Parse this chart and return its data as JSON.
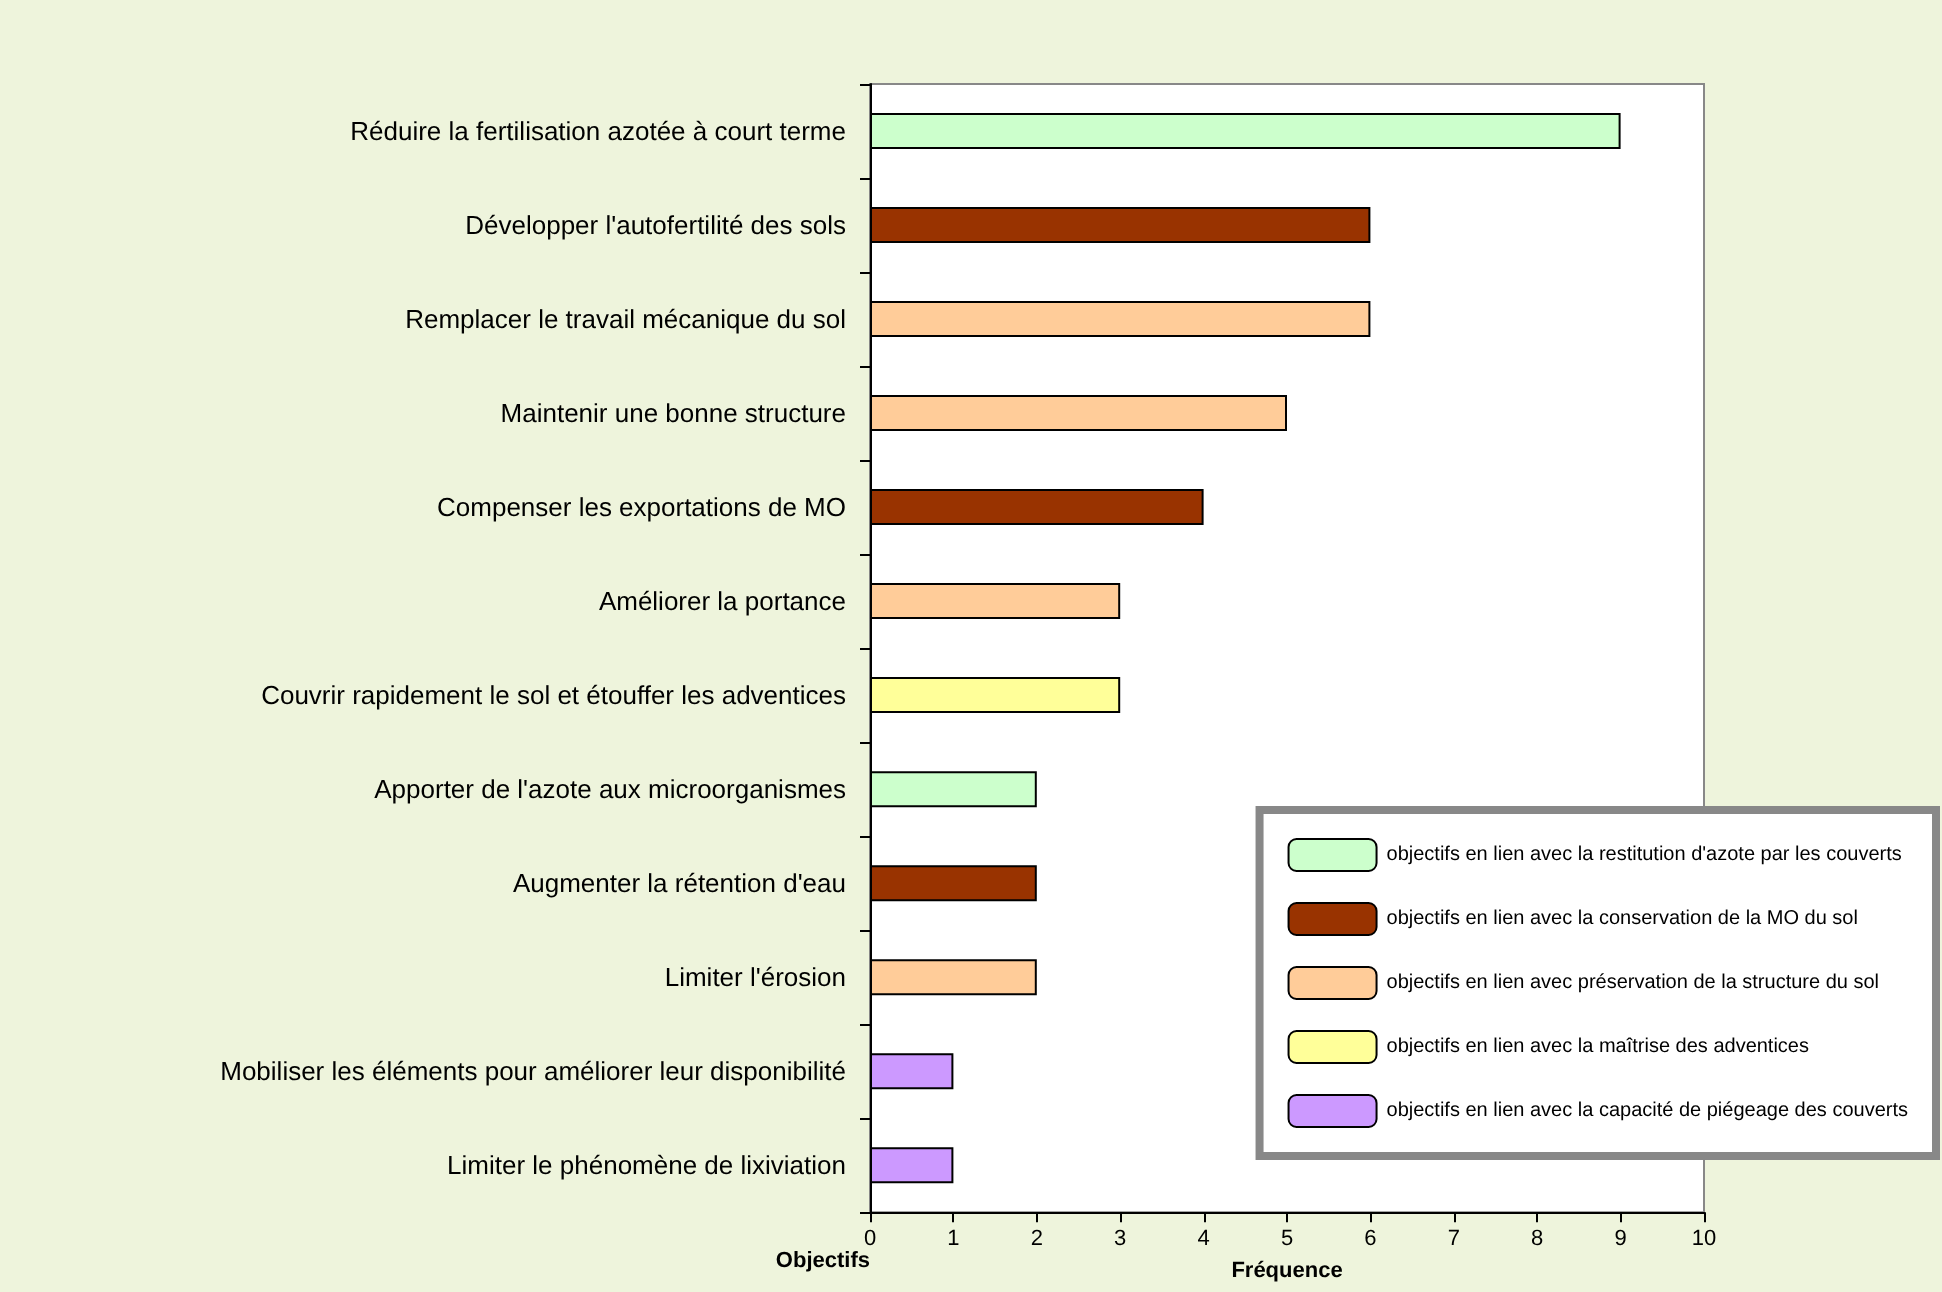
{
  "chart_data": {
    "type": "bar",
    "orientation": "horizontal",
    "ylabel": "Objectifs",
    "xlabel": "Fréquence",
    "categories": [
      "Réduire la fertilisation azotée à court terme",
      "Développer l'autofertilité des sols",
      "Remplacer le travail mécanique du sol",
      "Maintenir une bonne structure",
      "Compenser les exportations de MO",
      "Améliorer la portance",
      "Couvrir rapidement le sol et étouffer les adventices",
      "Apporter de l'azote aux microorganismes",
      "Augmenter la rétention d'eau",
      "Limiter l'érosion",
      "Mobiliser les éléments pour améliorer leur disponibilité",
      "Limiter le phénomène de lixiviation"
    ],
    "series": [
      {
        "name": "objectifs en lien avec la restitution d'azote par les couverts",
        "color": "#ccffcc",
        "values": [
          9,
          null,
          null,
          null,
          null,
          null,
          null,
          2,
          null,
          null,
          null,
          null
        ]
      },
      {
        "name": "objectifs en lien avec la conservation de la MO du sol",
        "color": "#993300",
        "values": [
          null,
          6,
          null,
          null,
          4,
          null,
          null,
          null,
          2,
          null,
          null,
          null
        ]
      },
      {
        "name": "objectifs en lien avec préservation de la structure du sol",
        "color": "#ffcc99",
        "values": [
          null,
          null,
          6,
          5,
          null,
          3,
          null,
          null,
          null,
          2,
          null,
          null
        ]
      },
      {
        "name": "objectifs en lien avec la maîtrise des adventices",
        "color": "#ffff99",
        "values": [
          null,
          null,
          null,
          null,
          null,
          null,
          3,
          null,
          null,
          null,
          null,
          null
        ]
      },
      {
        "name": "objectifs en lien avec la capacité de piégeage des couverts",
        "color": "#cc99ff",
        "values": [
          null,
          null,
          null,
          null,
          null,
          null,
          null,
          null,
          null,
          null,
          1,
          1
        ]
      }
    ],
    "xlim": [
      0,
      10
    ],
    "xticks": [
      0,
      1,
      2,
      3,
      4,
      5,
      6,
      7,
      8,
      9,
      10
    ],
    "grid": false,
    "legend": "bottom right"
  }
}
